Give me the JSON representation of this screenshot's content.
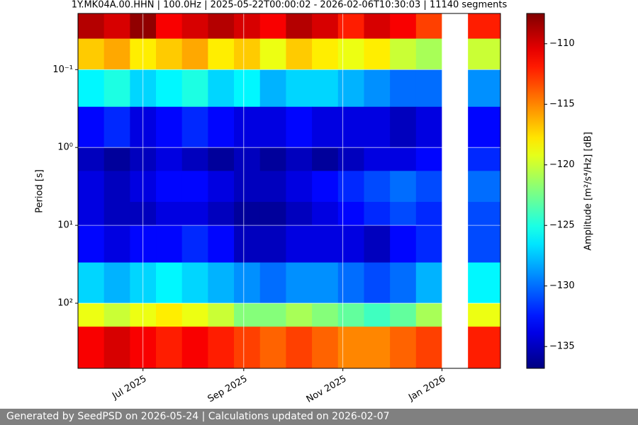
{
  "chart_data": {
    "type": "heatmap",
    "title": "1Y.MK04A.00.HHN | 100.0Hz | 2025-05-22T00:00:02 - 2026-02-06T10:30:03 | 11140 segments",
    "y_label": "Period [s]",
    "colorbar_label": "Amplitude [m²/s⁴/Hz] [dB]",
    "colormap": "jet",
    "grid": true,
    "yscale": "log",
    "y_inverted": true,
    "xlim": [
      "2025-05-22",
      "2026-02-06"
    ],
    "xticks": [
      {
        "value": "2025-07-01",
        "label": "Jul 2025"
      },
      {
        "value": "2025-09-01",
        "label": "Sep 2025"
      },
      {
        "value": "2025-11-01",
        "label": "Nov 2025"
      },
      {
        "value": "2026-01-01",
        "label": "Jan 2026"
      }
    ],
    "ylim": [
      0.019,
      686
    ],
    "yticks": [
      {
        "value": 0.1,
        "label": "10⁻¹"
      },
      {
        "value": 1,
        "label": "10⁰"
      },
      {
        "value": 10,
        "label": "10¹"
      },
      {
        "value": 100,
        "label": "10²"
      }
    ],
    "clim": [
      -136.8,
      -107.5
    ],
    "cticks": [
      {
        "value": -135,
        "label": "−135"
      },
      {
        "value": -130,
        "label": "−130"
      },
      {
        "value": -125,
        "label": "−125"
      },
      {
        "value": -120,
        "label": "−120"
      },
      {
        "value": -115,
        "label": "−115"
      },
      {
        "value": -110,
        "label": "−110"
      }
    ],
    "x_bins": [
      "2025-05-22",
      "2025-06-07",
      "2025-06-23",
      "2025-07-09",
      "2025-07-25",
      "2025-08-10",
      "2025-08-26",
      "2025-09-11",
      "2025-09-27",
      "2025-10-13",
      "2025-10-29",
      "2025-11-14",
      "2025-11-30",
      "2025-12-16",
      "2026-01-01",
      "2026-01-17",
      "2026-02-06"
    ],
    "y_bins": [
      0.019,
      0.04,
      0.1,
      0.3,
      1,
      2,
      5,
      10,
      30,
      100,
      200,
      686
    ],
    "z": [
      [
        -109,
        -110,
        -108,
        -111,
        -110,
        -109,
        -110,
        -111,
        -109,
        -110,
        -112,
        -110,
        -111,
        -113,
        null,
        -112
      ],
      [
        -117,
        -116,
        -118,
        -117,
        -116,
        -118,
        -117,
        -119,
        -117,
        -118,
        -119,
        -118,
        -120,
        -121,
        null,
        -120
      ],
      [
        -126,
        -125,
        -127,
        -126,
        -125,
        -127,
        -126,
        -128,
        -127,
        -127,
        -128,
        -129,
        -130,
        -130,
        null,
        -129
      ],
      [
        -133,
        -132,
        -134,
        -133,
        -132,
        -133,
        -134,
        -134,
        -133,
        -134,
        -134,
        -134,
        -135,
        -134,
        null,
        -133
      ],
      [
        -135,
        -136,
        -135,
        -134,
        -135,
        -136,
        -135,
        -136,
        -135,
        -136,
        -135,
        -134,
        -134,
        -133,
        null,
        -132
      ],
      [
        -134,
        -135,
        -134,
        -133,
        -133,
        -134,
        -135,
        -135,
        -134,
        -133,
        -132,
        -131,
        -130,
        -131,
        null,
        -130
      ],
      [
        -134,
        -135,
        -135,
        -134,
        -134,
        -135,
        -136,
        -136,
        -135,
        -134,
        -133,
        -132,
        -131,
        -132,
        null,
        -131
      ],
      [
        -133,
        -134,
        -133,
        -133,
        -132,
        -133,
        -135,
        -135,
        -134,
        -134,
        -134,
        -135,
        -133,
        -132,
        null,
        -131
      ],
      [
        -127,
        -128,
        -127,
        -126,
        -127,
        -128,
        -129,
        -130,
        -129,
        -129,
        -130,
        -131,
        -130,
        -128,
        null,
        -126
      ],
      [
        -119,
        -120,
        -119,
        -118,
        -119,
        -120,
        -122,
        -122,
        -121,
        -122,
        -123,
        -124,
        -123,
        -121,
        null,
        -119
      ],
      [
        -111,
        -110,
        -111,
        -112,
        -111,
        -112,
        -113,
        -114,
        -113,
        -114,
        -115,
        -115,
        -114,
        -113,
        null,
        -112
      ]
    ]
  },
  "footer": "Generated by SeedPSD on 2026-05-24 | Calculations updated on 2026-02-07"
}
